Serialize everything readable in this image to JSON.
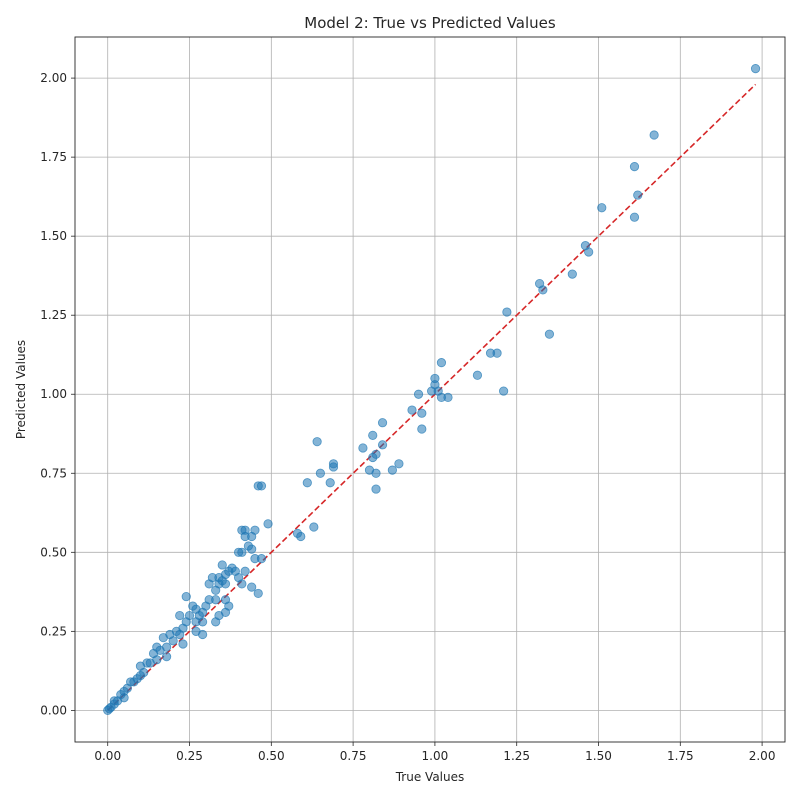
{
  "chart_data": {
    "type": "scatter",
    "title": "Model 2: True vs Predicted Values",
    "xlabel": "True Values",
    "ylabel": "Predicted Values",
    "xlim": [
      -0.1,
      2.07
    ],
    "ylim": [
      -0.1,
      2.13
    ],
    "xticks": [
      0.0,
      0.25,
      0.5,
      0.75,
      1.0,
      1.25,
      1.5,
      1.75,
      2.0
    ],
    "xtick_labels": [
      "0.00",
      "0.25",
      "0.50",
      "0.75",
      "1.00",
      "1.25",
      "1.50",
      "1.75",
      "2.00"
    ],
    "yticks": [
      0.0,
      0.25,
      0.5,
      0.75,
      1.0,
      1.25,
      1.5,
      1.75,
      2.0
    ],
    "ytick_labels": [
      "0.00",
      "0.25",
      "0.50",
      "0.75",
      "1.00",
      "1.25",
      "1.50",
      "1.75",
      "2.00"
    ],
    "grid": true,
    "point_color": "#1f77b4",
    "reference_line": {
      "x": [
        0.0,
        1.98
      ],
      "y": [
        0.0,
        1.98
      ],
      "color": "#d62728",
      "style": "dashed"
    },
    "points": [
      [
        1.98,
        2.03
      ],
      [
        1.67,
        1.82
      ],
      [
        1.61,
        1.72
      ],
      [
        1.62,
        1.63
      ],
      [
        1.61,
        1.56
      ],
      [
        1.51,
        1.59
      ],
      [
        1.46,
        1.47
      ],
      [
        1.47,
        1.45
      ],
      [
        1.42,
        1.38
      ],
      [
        1.32,
        1.35
      ],
      [
        1.33,
        1.33
      ],
      [
        1.35,
        1.19
      ],
      [
        1.22,
        1.26
      ],
      [
        1.21,
        1.01
      ],
      [
        1.19,
        1.13
      ],
      [
        1.17,
        1.13
      ],
      [
        1.13,
        1.06
      ],
      [
        1.02,
        1.1
      ],
      [
        1.0,
        1.05
      ],
      [
        1.0,
        1.03
      ],
      [
        0.99,
        1.01
      ],
      [
        1.01,
        1.01
      ],
      [
        1.02,
        0.99
      ],
      [
        1.04,
        0.99
      ],
      [
        0.95,
        1.0
      ],
      [
        0.93,
        0.95
      ],
      [
        0.96,
        0.94
      ],
      [
        0.96,
        0.89
      ],
      [
        0.84,
        0.91
      ],
      [
        0.81,
        0.87
      ],
      [
        0.84,
        0.84
      ],
      [
        0.78,
        0.83
      ],
      [
        0.81,
        0.8
      ],
      [
        0.82,
        0.81
      ],
      [
        0.89,
        0.78
      ],
      [
        0.87,
        0.76
      ],
      [
        0.8,
        0.76
      ],
      [
        0.82,
        0.75
      ],
      [
        0.82,
        0.7
      ],
      [
        0.64,
        0.85
      ],
      [
        0.69,
        0.78
      ],
      [
        0.69,
        0.77
      ],
      [
        0.65,
        0.75
      ],
      [
        0.61,
        0.72
      ],
      [
        0.68,
        0.72
      ],
      [
        0.46,
        0.71
      ],
      [
        0.47,
        0.71
      ],
      [
        0.49,
        0.59
      ],
      [
        0.58,
        0.56
      ],
      [
        0.59,
        0.55
      ],
      [
        0.63,
        0.58
      ],
      [
        0.45,
        0.57
      ],
      [
        0.42,
        0.57
      ],
      [
        0.41,
        0.57
      ],
      [
        0.42,
        0.55
      ],
      [
        0.44,
        0.55
      ],
      [
        0.44,
        0.51
      ],
      [
        0.41,
        0.5
      ],
      [
        0.43,
        0.52
      ],
      [
        0.4,
        0.5
      ],
      [
        0.45,
        0.48
      ],
      [
        0.47,
        0.48
      ],
      [
        0.41,
        0.4
      ],
      [
        0.44,
        0.39
      ],
      [
        0.46,
        0.37
      ],
      [
        0.42,
        0.44
      ],
      [
        0.4,
        0.42
      ],
      [
        0.39,
        0.44
      ],
      [
        0.38,
        0.45
      ],
      [
        0.37,
        0.44
      ],
      [
        0.36,
        0.43
      ],
      [
        0.35,
        0.46
      ],
      [
        0.34,
        0.42
      ],
      [
        0.35,
        0.41
      ],
      [
        0.36,
        0.4
      ],
      [
        0.34,
        0.4
      ],
      [
        0.33,
        0.38
      ],
      [
        0.32,
        0.42
      ],
      [
        0.31,
        0.4
      ],
      [
        0.33,
        0.35
      ],
      [
        0.36,
        0.35
      ],
      [
        0.37,
        0.33
      ],
      [
        0.36,
        0.31
      ],
      [
        0.34,
        0.3
      ],
      [
        0.33,
        0.28
      ],
      [
        0.31,
        0.35
      ],
      [
        0.3,
        0.33
      ],
      [
        0.29,
        0.31
      ],
      [
        0.29,
        0.28
      ],
      [
        0.29,
        0.24
      ],
      [
        0.28,
        0.3
      ],
      [
        0.27,
        0.32
      ],
      [
        0.27,
        0.28
      ],
      [
        0.27,
        0.25
      ],
      [
        0.26,
        0.33
      ],
      [
        0.25,
        0.3
      ],
      [
        0.24,
        0.36
      ],
      [
        0.24,
        0.28
      ],
      [
        0.23,
        0.26
      ],
      [
        0.23,
        0.21
      ],
      [
        0.22,
        0.3
      ],
      [
        0.22,
        0.24
      ],
      [
        0.21,
        0.25
      ],
      [
        0.2,
        0.22
      ],
      [
        0.19,
        0.24
      ],
      [
        0.18,
        0.2
      ],
      [
        0.18,
        0.17
      ],
      [
        0.17,
        0.23
      ],
      [
        0.16,
        0.19
      ],
      [
        0.15,
        0.2
      ],
      [
        0.15,
        0.16
      ],
      [
        0.14,
        0.18
      ],
      [
        0.13,
        0.15
      ],
      [
        0.12,
        0.15
      ],
      [
        0.11,
        0.12
      ],
      [
        0.1,
        0.14
      ],
      [
        0.1,
        0.11
      ],
      [
        0.09,
        0.1
      ],
      [
        0.08,
        0.09
      ],
      [
        0.07,
        0.09
      ],
      [
        0.06,
        0.07
      ],
      [
        0.05,
        0.06
      ],
      [
        0.05,
        0.04
      ],
      [
        0.04,
        0.05
      ],
      [
        0.03,
        0.03
      ],
      [
        0.02,
        0.02
      ],
      [
        0.02,
        0.03
      ],
      [
        0.01,
        0.01
      ],
      [
        0.005,
        0.005
      ],
      [
        0.0,
        0.0
      ]
    ]
  }
}
